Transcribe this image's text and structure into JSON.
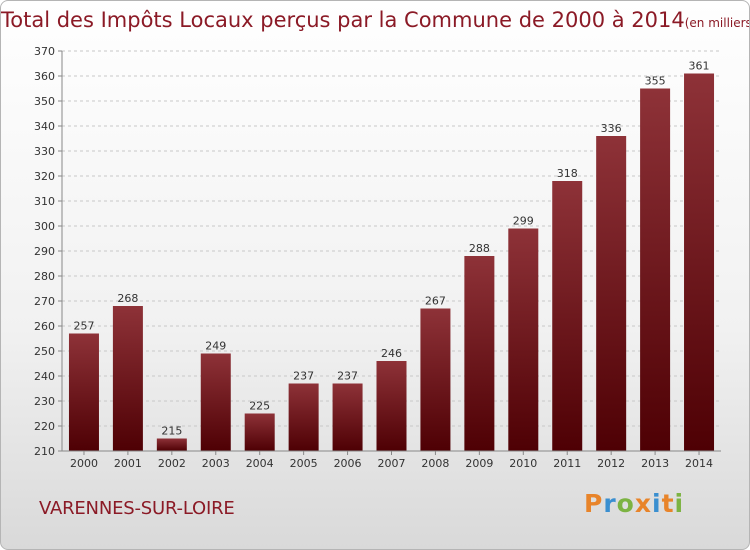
{
  "header": {
    "title": "Total des Impôts Locaux perçus par la Commune de 2000 à 2014",
    "unit": "(en milliers d'€)"
  },
  "footer": {
    "commune": "VARENNES-SUR-LOIRE",
    "logo": {
      "text": "Proxiti",
      "letters": [
        "P",
        "r",
        "o",
        "x",
        "i",
        "t",
        "i"
      ],
      "colors": [
        "#e8842a",
        "#3a8fd0",
        "#7cb342",
        "#e8842a",
        "#3a8fd0",
        "#e8842a",
        "#7cb342"
      ]
    }
  },
  "colors": {
    "bar_top": "#8e3238",
    "bar_bottom": "#4e0004",
    "text": "#8b1a26"
  },
  "chart_data": {
    "type": "bar",
    "title": "Total des Impôts Locaux perçus par la Commune de 2000 à 2014",
    "xlabel": "",
    "ylabel": "",
    "categories": [
      "2000",
      "2001",
      "2002",
      "2003",
      "2004",
      "2005",
      "2006",
      "2007",
      "2008",
      "2009",
      "2010",
      "2011",
      "2012",
      "2013",
      "2014"
    ],
    "values": [
      257,
      268,
      215,
      249,
      225,
      237,
      237,
      246,
      267,
      288,
      299,
      318,
      336,
      355,
      361
    ],
    "ylim": [
      210,
      370
    ],
    "yticks": [
      210,
      220,
      230,
      240,
      250,
      260,
      270,
      280,
      290,
      300,
      310,
      320,
      330,
      340,
      350,
      360,
      370
    ],
    "grid": true
  }
}
